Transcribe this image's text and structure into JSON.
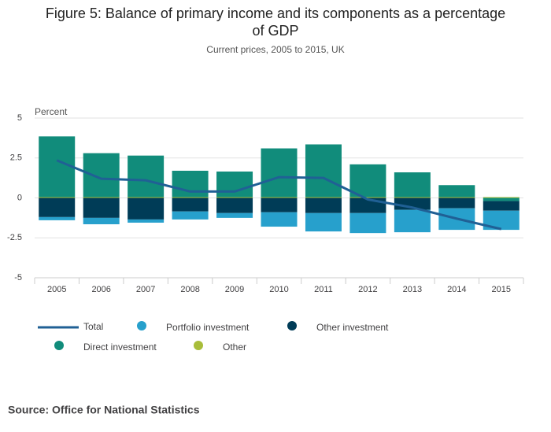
{
  "chart_data": {
    "type": "stacked-bar-line",
    "title": "Figure 5: Balance of primary income and its components as a percentage of GDP",
    "subtitle": "Current prices, 2005 to 2015, UK",
    "y_label": "Percent",
    "categories": [
      "2005",
      "2006",
      "2007",
      "2008",
      "2009",
      "2010",
      "2011",
      "2012",
      "2013",
      "2014",
      "2015"
    ],
    "series": [
      {
        "name": "Total",
        "type": "line",
        "color": "#206095",
        "values": [
          2.35,
          1.2,
          1.1,
          0.4,
          0.4,
          1.3,
          1.25,
          -0.1,
          -0.6,
          -1.3,
          -1.95
        ]
      },
      {
        "name": "Portfolio investment",
        "type": "bar",
        "color": "#27a0cc",
        "values": [
          -0.2,
          -0.4,
          -0.2,
          -0.5,
          -0.3,
          -0.9,
          -1.15,
          -1.25,
          -1.4,
          -1.35,
          -1.2
        ]
      },
      {
        "name": "Other investment",
        "type": "bar",
        "color": "#003c57",
        "values": [
          -1.2,
          -1.25,
          -1.35,
          -0.85,
          -0.95,
          -0.9,
          -0.95,
          -0.95,
          -0.75,
          -0.65,
          -0.6
        ]
      },
      {
        "name": "Direct investment",
        "type": "bar",
        "color": "#118c7b",
        "values": [
          3.8,
          2.75,
          2.6,
          1.65,
          1.6,
          3.05,
          3.3,
          2.05,
          1.55,
          0.75,
          -0.2
        ]
      },
      {
        "name": "Other",
        "type": "bar",
        "color": "#a8bd3a",
        "values": [
          0.05,
          0.05,
          0.05,
          0.05,
          0.05,
          0.05,
          0.05,
          0.05,
          0.05,
          0.05,
          0.05
        ]
      }
    ],
    "ylim": [
      -5,
      5
    ],
    "yticks": [
      5,
      2.5,
      0,
      -2.5,
      -5
    ],
    "grid": true,
    "source": "Source: Office for National Statistics"
  }
}
